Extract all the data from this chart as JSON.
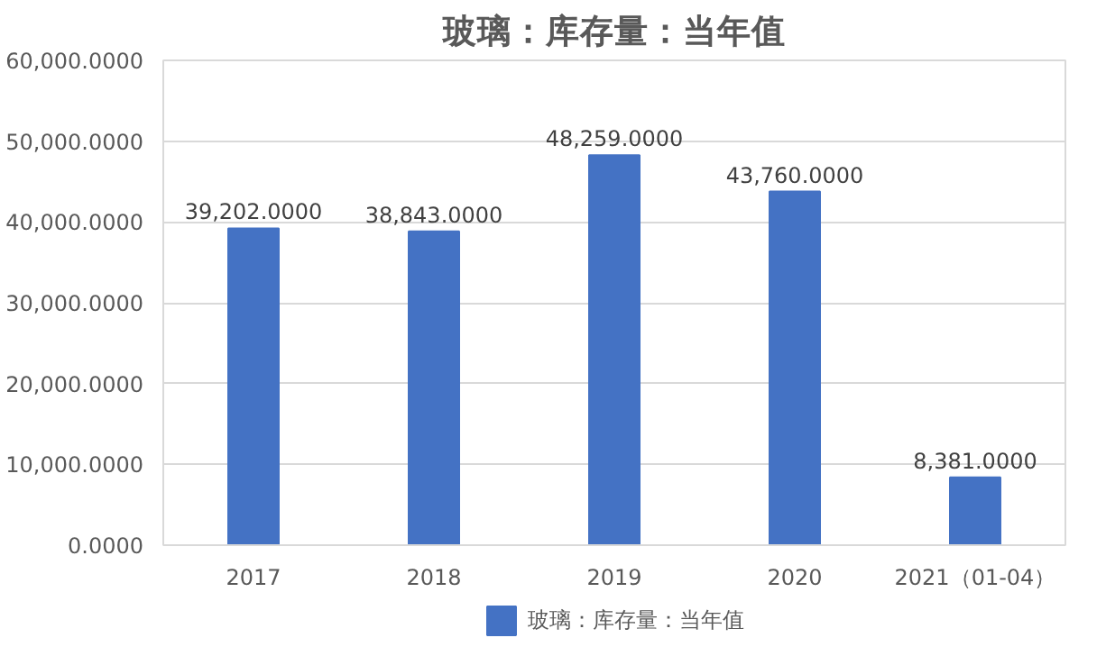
{
  "chart_data": {
    "type": "bar",
    "title": "玻璃：库存量：当年值",
    "categories": [
      "2017",
      "2018",
      "2019",
      "2020",
      "2021（01-04）"
    ],
    "series": [
      {
        "name": "玻璃：库存量：当年值",
        "color": "#4472c4",
        "values": [
          39202,
          38843,
          48259,
          43760,
          8381
        ],
        "value_labels": [
          "39,202.0000",
          "38,843.0000",
          "48,259.0000",
          "43,760.0000",
          "8,381.0000"
        ]
      }
    ],
    "ylim": [
      0,
      60000
    ],
    "yticks": [
      {
        "value": 0,
        "label": "0.0000"
      },
      {
        "value": 10000,
        "label": "10,000.0000"
      },
      {
        "value": 20000,
        "label": "20,000.0000"
      },
      {
        "value": 30000,
        "label": "30,000.0000"
      },
      {
        "value": 40000,
        "label": "40,000.0000"
      },
      {
        "value": 50000,
        "label": "50,000.0000"
      },
      {
        "value": 60000,
        "label": "60,000.0000"
      }
    ],
    "grid": "y",
    "legend": "bottom"
  }
}
